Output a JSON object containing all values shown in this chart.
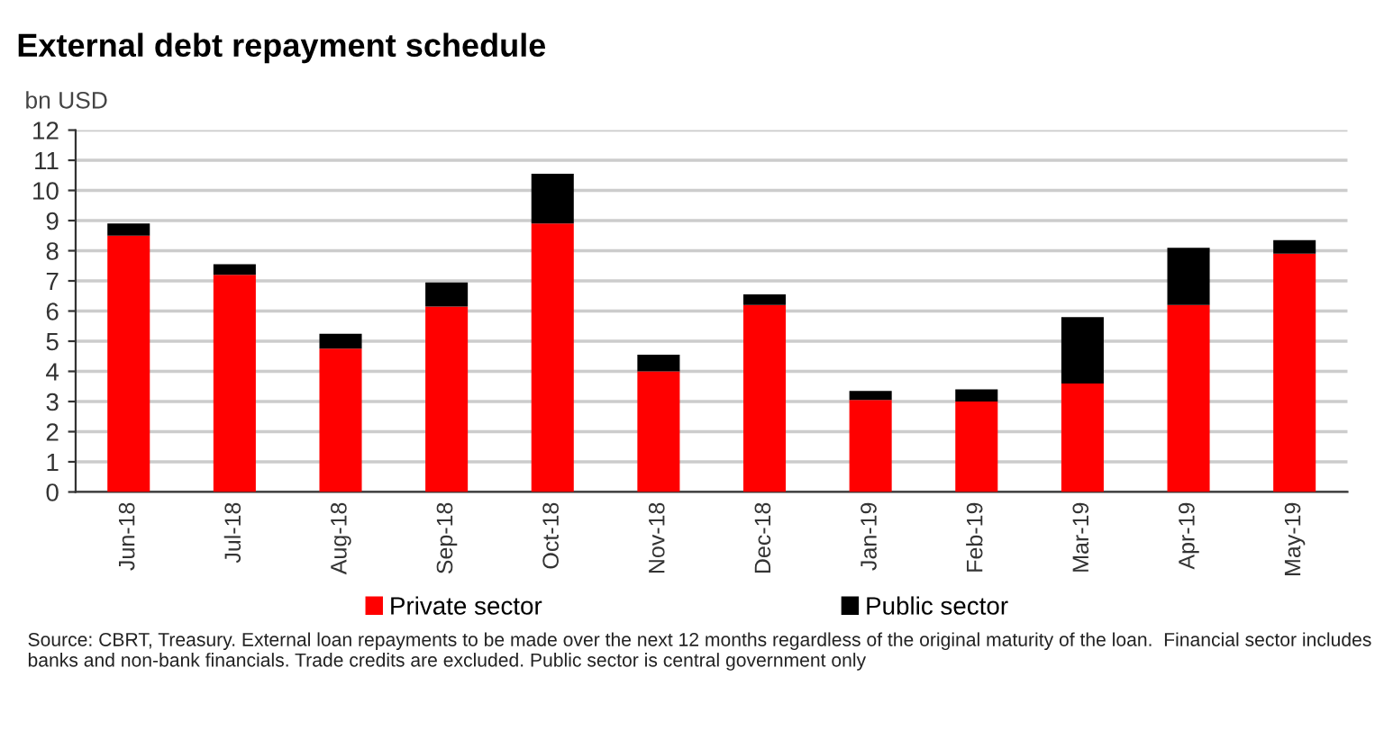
{
  "chart_data": {
    "type": "bar",
    "title": "External debt repayment schedule",
    "ylabel": "bn USD",
    "categories": [
      "Jun-18",
      "Jul-18",
      "Aug-18",
      "Sep-18",
      "Oct-18",
      "Nov-18",
      "Dec-18",
      "Jan-19",
      "Feb-19",
      "Mar-19",
      "Apr-19",
      "May-19"
    ],
    "series": [
      {
        "name": "Private sector",
        "color": "#ff0000",
        "values": [
          8.5,
          7.2,
          4.75,
          6.15,
          8.9,
          4.0,
          6.2,
          3.05,
          3.0,
          3.6,
          6.2,
          7.9
        ]
      },
      {
        "name": "Public sector",
        "color": "#000000",
        "values": [
          0.4,
          0.35,
          0.5,
          0.8,
          1.65,
          0.55,
          0.35,
          0.3,
          0.4,
          2.2,
          1.9,
          0.45
        ]
      }
    ],
    "stacked": true,
    "ylim": [
      0,
      12
    ],
    "yticks": [
      0,
      1,
      2,
      3,
      4,
      5,
      6,
      7,
      8,
      9,
      10,
      11,
      12
    ],
    "grid": "y",
    "legend": "bottom",
    "annotations": [
      "Source: CBRT, Treasury. External loan repayments to be made over the next 12 months regardless of the original maturity of the loan.  Financial sector includes banks and non-bank financials. Trade credits are excluded. Public sector is central government only"
    ]
  }
}
